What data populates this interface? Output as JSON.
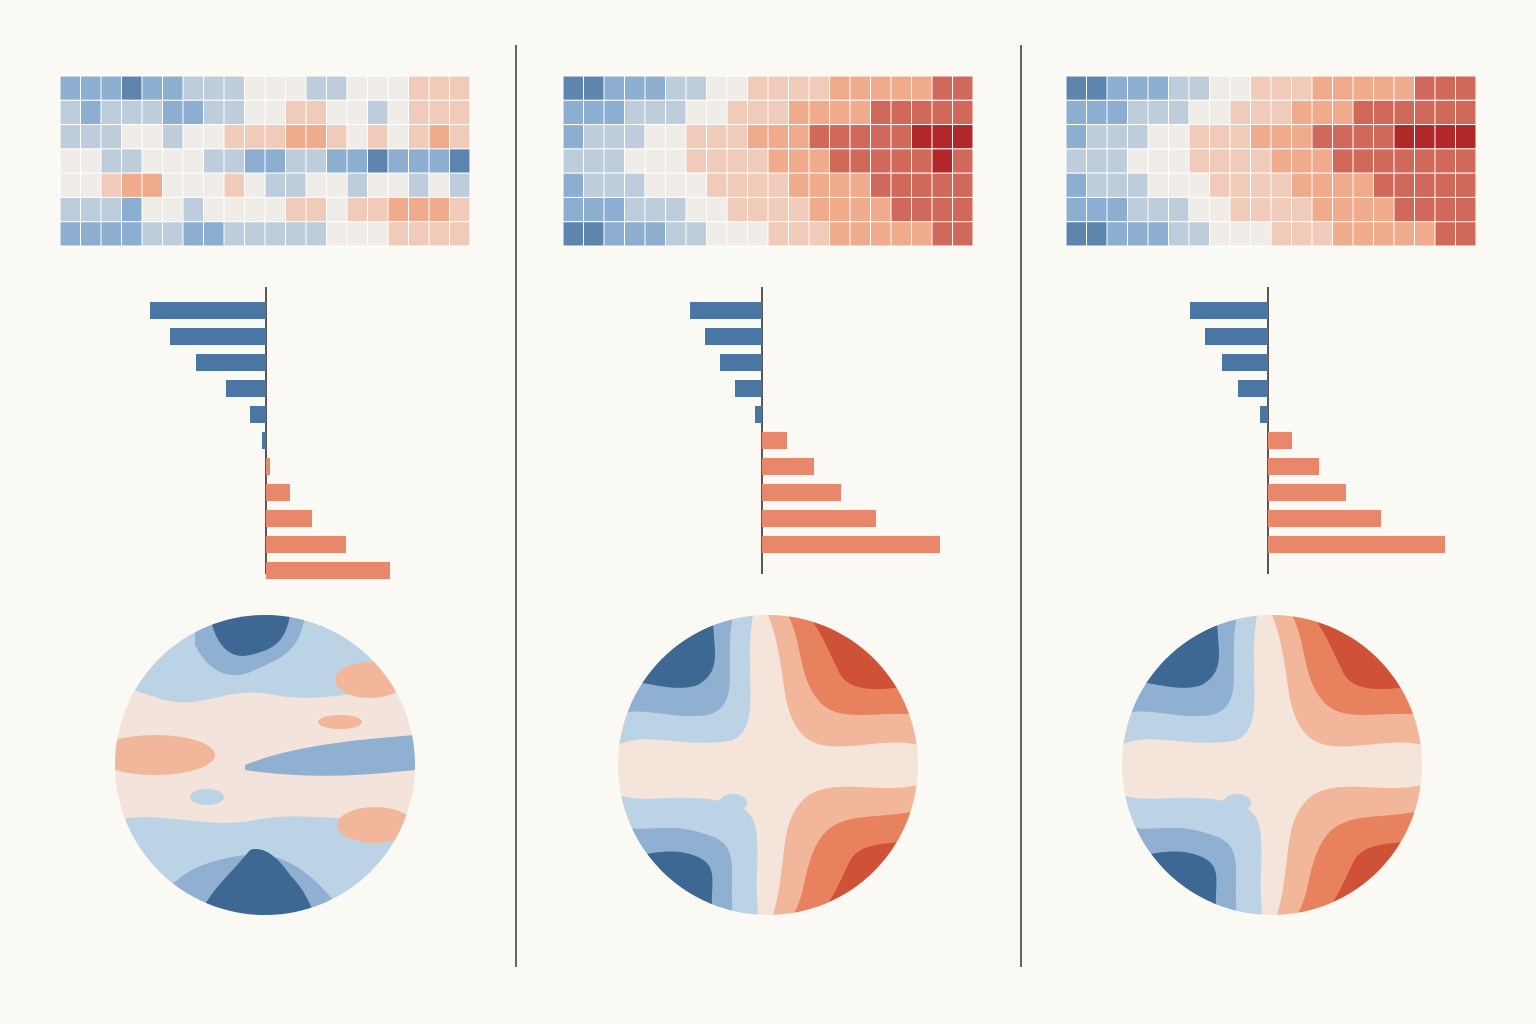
{
  "chart_data": [
    {
      "type": "heatmap",
      "clim": [
        -4,
        4
      ],
      "values": [
        [
          -2,
          -2,
          -2,
          -3,
          -2,
          -2,
          -1,
          -1,
          -1,
          0,
          0,
          0,
          -1,
          -1,
          0,
          0,
          0,
          1,
          1,
          1
        ],
        [
          -1,
          -2,
          -1,
          -1,
          -1,
          -2,
          -2,
          -1,
          -1,
          0,
          0,
          1,
          1,
          0,
          0,
          -1,
          0,
          1,
          1,
          1
        ],
        [
          -1,
          -1,
          -1,
          0,
          0,
          -1,
          0,
          0,
          1,
          1,
          1,
          2,
          2,
          1,
          0,
          1,
          0,
          1,
          2,
          1
        ],
        [
          0,
          0,
          -1,
          -1,
          0,
          0,
          0,
          -1,
          -1,
          -2,
          -2,
          -1,
          -1,
          -2,
          -2,
          -3,
          -2,
          -2,
          -2,
          -3
        ],
        [
          0,
          0,
          1,
          2,
          2,
          0,
          0,
          0,
          1,
          0,
          -1,
          -1,
          0,
          0,
          -1,
          0,
          0,
          -1,
          0,
          -1
        ],
        [
          -1,
          -1,
          -1,
          -2,
          0,
          0,
          -1,
          0,
          0,
          0,
          0,
          1,
          1,
          0,
          1,
          1,
          2,
          2,
          2,
          1
        ],
        [
          -2,
          -2,
          -2,
          -2,
          -1,
          -1,
          -2,
          -2,
          -1,
          -1,
          -1,
          -1,
          -1,
          0,
          0,
          0,
          1,
          1,
          1,
          1
        ]
      ]
    },
    {
      "type": "bar",
      "orientation": "horizontal",
      "xlim": [
        -6,
        6.5
      ],
      "color_negative": "#4a76a4",
      "color_positive": "#e8876a",
      "values": [
        -5.8,
        -4.8,
        -3.5,
        -2,
        -0.8,
        -0.2,
        0.2,
        1.2,
        2.3,
        4,
        6.2
      ]
    },
    {
      "type": "heatmap",
      "clim": [
        -4,
        4
      ],
      "values": [
        [
          -3,
          -3,
          -2,
          -2,
          -2,
          -1,
          -1,
          0,
          0,
          1,
          1,
          1,
          1,
          2,
          2,
          2,
          2,
          2,
          3,
          3
        ],
        [
          -2,
          -2,
          -2,
          -1,
          -1,
          -1,
          0,
          0,
          1,
          1,
          1,
          2,
          2,
          2,
          2,
          3,
          3,
          3,
          3,
          3
        ],
        [
          -2,
          -1,
          -1,
          -1,
          0,
          0,
          1,
          1,
          1,
          2,
          2,
          2,
          3,
          3,
          3,
          3,
          3,
          4,
          4,
          4
        ],
        [
          -1,
          -1,
          -1,
          0,
          0,
          0,
          1,
          1,
          1,
          1,
          2,
          2,
          2,
          3,
          3,
          3,
          3,
          3,
          4,
          3
        ],
        [
          -2,
          -1,
          -1,
          -1,
          0,
          0,
          0,
          1,
          1,
          1,
          1,
          2,
          2,
          2,
          2,
          3,
          3,
          3,
          3,
          3
        ],
        [
          -2,
          -2,
          -2,
          -1,
          -1,
          -1,
          0,
          0,
          1,
          1,
          1,
          1,
          2,
          2,
          2,
          2,
          3,
          3,
          3,
          3
        ],
        [
          -3,
          -3,
          -2,
          -2,
          -2,
          -1,
          -1,
          0,
          0,
          0,
          1,
          1,
          1,
          2,
          2,
          2,
          2,
          2,
          3,
          3
        ]
      ]
    },
    {
      "type": "bar",
      "orientation": "horizontal",
      "xlim": [
        -4,
        9
      ],
      "color_negative": "#4a76a4",
      "color_positive": "#e8876a",
      "values": [
        -3.6,
        -2.85,
        -2.1,
        -1.35,
        -0.35,
        1.25,
        2.6,
        3.95,
        5.7,
        8.9
      ]
    },
    {
      "type": "heatmap",
      "clim": [
        -4,
        4
      ],
      "values": [
        [
          -3,
          -3,
          -2,
          -2,
          -2,
          -1,
          -1,
          0,
          0,
          1,
          1,
          1,
          2,
          2,
          2,
          2,
          2,
          3,
          3,
          3
        ],
        [
          -2,
          -2,
          -2,
          -1,
          -1,
          -1,
          0,
          0,
          1,
          1,
          1,
          2,
          2,
          2,
          3,
          3,
          3,
          3,
          3,
          3
        ],
        [
          -2,
          -1,
          -1,
          -1,
          0,
          0,
          1,
          1,
          1,
          2,
          2,
          2,
          3,
          3,
          3,
          3,
          4,
          4,
          4,
          4
        ],
        [
          -1,
          -1,
          -1,
          0,
          0,
          0,
          1,
          1,
          1,
          1,
          2,
          2,
          2,
          3,
          3,
          3,
          3,
          3,
          3,
          3
        ],
        [
          -2,
          -1,
          -1,
          -1,
          0,
          0,
          0,
          1,
          1,
          1,
          1,
          2,
          2,
          2,
          2,
          3,
          3,
          3,
          3,
          3
        ],
        [
          -2,
          -2,
          -2,
          -1,
          -1,
          -1,
          0,
          0,
          1,
          1,
          1,
          1,
          2,
          2,
          2,
          2,
          3,
          3,
          3,
          3
        ],
        [
          -3,
          -3,
          -2,
          -2,
          -2,
          -1,
          -1,
          0,
          0,
          0,
          1,
          1,
          1,
          2,
          2,
          2,
          2,
          2,
          3,
          3
        ]
      ]
    },
    {
      "type": "bar",
      "orientation": "horizontal",
      "xlim": [
        -4,
        9
      ],
      "color_negative": "#4a76a4",
      "color_positive": "#e8876a",
      "values": [
        -3.9,
        -3.15,
        -2.3,
        -1.5,
        -0.4,
        1.2,
        2.55,
        3.9,
        5.65,
        8.85
      ]
    }
  ]
}
